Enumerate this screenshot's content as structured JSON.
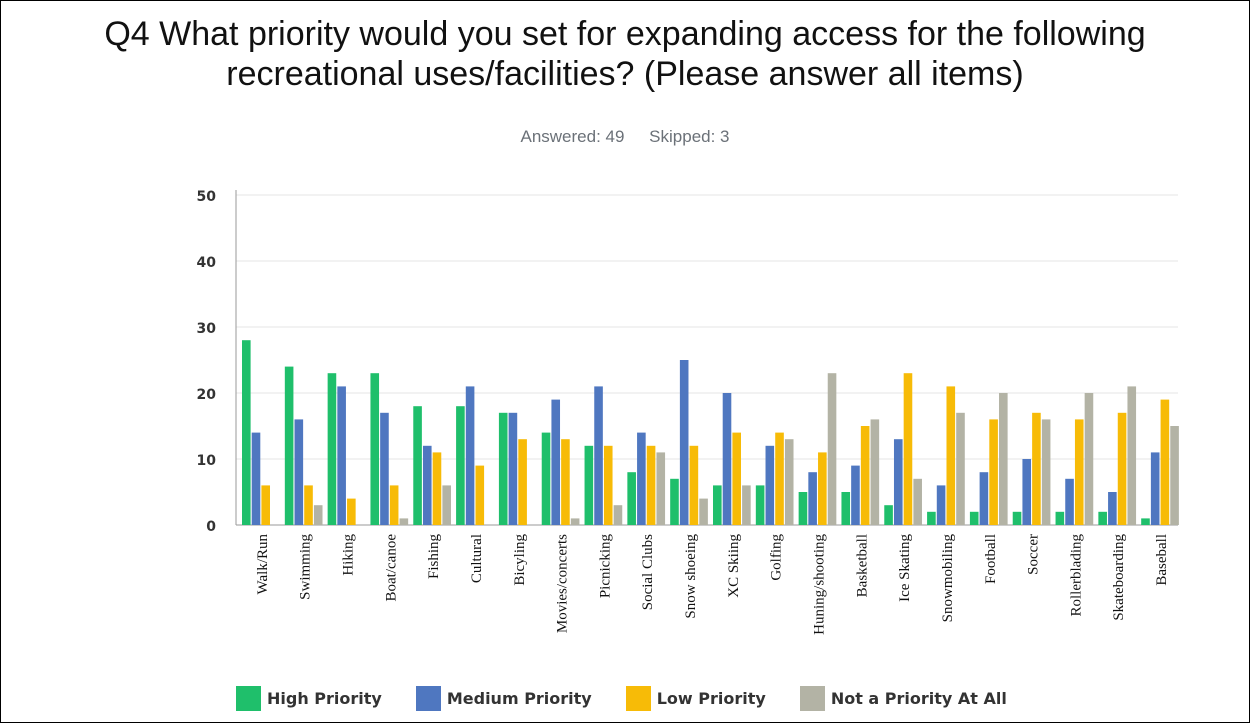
{
  "title_lines": [
    "Q4 What priority would you set for expanding access for the following",
    "recreational uses/facilities? (Please answer all items)"
  ],
  "stats": {
    "answered": "Answered: 49",
    "skipped": "Skipped: 3"
  },
  "chart_data": {
    "type": "bar",
    "title": "Q4 What priority would you set for expanding access for the following recreational uses/facilities? (Please answer all items)",
    "categories": [
      "Walk/Run",
      "Swimming",
      "Hiking",
      "Boat/canoe",
      "Fishing",
      "Cultural",
      "Bicyling",
      "Movies/concerts",
      "Picnicking",
      "Social Clubs",
      "Snow shoeing",
      "XC Skiing",
      "Golfing",
      "Huning/shooting",
      "Basketball",
      "Ice Skating",
      "Snowmobiling",
      "Football",
      "Soccer",
      "Rollerblading",
      "Skateboarding",
      "Baseball"
    ],
    "series": [
      {
        "name": "High Priority",
        "color": "#1fbf6b",
        "values": [
          28,
          24,
          23,
          23,
          18,
          18,
          17,
          14,
          12,
          8,
          7,
          6,
          6,
          5,
          5,
          3,
          2,
          2,
          2,
          2,
          2,
          1
        ]
      },
      {
        "name": "Medium Priority",
        "color": "#4f77c0",
        "values": [
          14,
          16,
          21,
          17,
          12,
          21,
          17,
          19,
          21,
          14,
          25,
          20,
          12,
          8,
          9,
          13,
          6,
          8,
          10,
          7,
          5,
          11
        ]
      },
      {
        "name": "Low Priority",
        "color": "#f7bb07",
        "values": [
          6,
          6,
          4,
          6,
          11,
          9,
          13,
          13,
          12,
          12,
          12,
          14,
          14,
          11,
          15,
          23,
          21,
          16,
          17,
          16,
          17,
          19
        ]
      },
      {
        "name": "Not a Priority At All",
        "color": "#b3b3a5",
        "values": [
          0,
          3,
          0,
          1,
          6,
          0,
          0,
          1,
          3,
          11,
          4,
          6,
          13,
          23,
          16,
          7,
          17,
          20,
          16,
          20,
          21,
          15
        ]
      }
    ],
    "ylim": [
      0,
      50
    ],
    "yticks": [
      0,
      10,
      20,
      30,
      40,
      50
    ],
    "xlabel": "",
    "ylabel": "",
    "grid": true,
    "legend": "bottom"
  }
}
